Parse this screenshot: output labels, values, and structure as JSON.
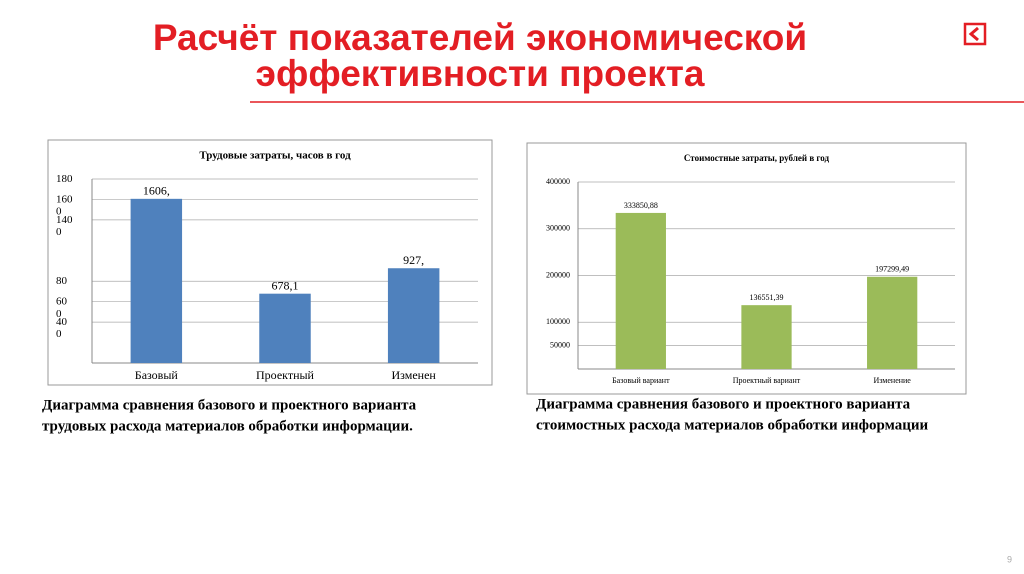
{
  "title_lines": [
    "Расчёт показателей экономической",
    "эффективности проекта"
  ],
  "page_number": "9",
  "captions": [
    [
      "Диаграмма сравнения базового и проектного варианта",
      "трудовых расхода материалов обработки информации."
    ],
    [
      "Диаграмма сравнения базового и проектного варианта",
      "стоимостных расхода материалов обработки информации"
    ]
  ],
  "chart_data": [
    {
      "type": "bar",
      "title": "Трудовые затраты, часов в год",
      "categories": [
        "Базовый",
        "Проектный",
        "Изменен"
      ],
      "values": [
        1606,
        678.1,
        927
      ],
      "value_labels": [
        "1606,",
        "678,1",
        "927,"
      ],
      "color": "#4f81bd",
      "ylim": [
        0,
        1800
      ],
      "yticks": [
        {
          "value": 1800,
          "label": "180"
        },
        {
          "value": 1600,
          "label": "160 0"
        },
        {
          "value": 1400,
          "label": "140 0"
        },
        {
          "value": 800,
          "label": "80"
        },
        {
          "value": 600,
          "label": "60 0"
        },
        {
          "value": 400,
          "label": "40 0"
        }
      ],
      "grid": true
    },
    {
      "type": "bar",
      "title": "Стоимостные затраты, рублей в год",
      "categories": [
        "Базовый вариант",
        "Проектный вариант",
        "Изменение"
      ],
      "values": [
        333850.88,
        136551.39,
        197299.49
      ],
      "value_labels": [
        "333850,88",
        "136551,39",
        "197299,49"
      ],
      "color": "#9bbb59",
      "ylim": [
        0,
        400000
      ],
      "yticks": [
        400000,
        300000,
        200000,
        100000,
        50000
      ],
      "grid": true
    }
  ]
}
